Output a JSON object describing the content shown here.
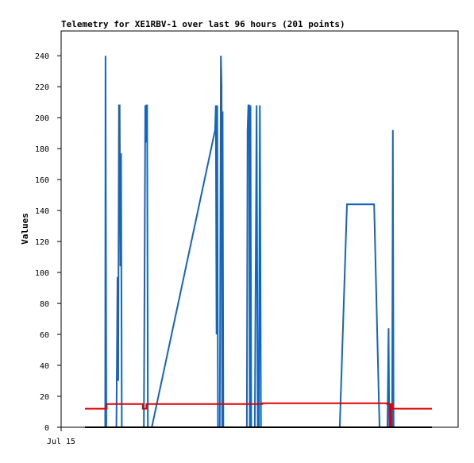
{
  "chart_data": {
    "type": "line",
    "title": "Telemetry for XE1RBV-1 over last 96 hours (201 points)",
    "xlabel": "",
    "ylabel": "Values",
    "x_tick_labels": [
      "Jul 15"
    ],
    "y_ticks": [
      0,
      20,
      40,
      60,
      80,
      100,
      120,
      140,
      160,
      180,
      200,
      220,
      240
    ],
    "xlim": [
      0,
      96
    ],
    "ylim": [
      0,
      256
    ],
    "grid": false,
    "legend": "none",
    "colors": {
      "blue": "#1565c0",
      "red": "#e00000",
      "black": "#000000"
    },
    "series": [
      {
        "color": "#1565c0",
        "points": [
          [
            5.6,
            0
          ],
          [
            5.7,
            240
          ],
          [
            5.8,
            120
          ],
          [
            5.9,
            0
          ],
          [
            8.7,
            0
          ],
          [
            9.0,
            97
          ],
          [
            9.2,
            30
          ],
          [
            9.4,
            208
          ],
          [
            9.6,
            208
          ],
          [
            9.8,
            104
          ],
          [
            10.0,
            177
          ],
          [
            10.2,
            0
          ],
          [
            16.3,
            0
          ],
          [
            16.5,
            104
          ],
          [
            16.7,
            208
          ],
          [
            16.85,
            184
          ],
          [
            17.0,
            208
          ],
          [
            17.2,
            208
          ],
          [
            17.4,
            0
          ],
          [
            18.5,
            0
          ],
          [
            36.0,
            192
          ],
          [
            36.2,
            208
          ],
          [
            36.4,
            60
          ],
          [
            36.6,
            208
          ],
          [
            36.8,
            0
          ],
          [
            37.3,
            0
          ],
          [
            37.6,
            240
          ],
          [
            37.8,
            220
          ],
          [
            37.95,
            0
          ],
          [
            38.1,
            204
          ],
          [
            38.3,
            0
          ],
          [
            44.8,
            0
          ],
          [
            45.0,
            192
          ],
          [
            45.2,
            208
          ],
          [
            45.4,
            208
          ],
          [
            45.6,
            0
          ],
          [
            45.8,
            208
          ],
          [
            46.0,
            0
          ],
          [
            47.0,
            0
          ],
          [
            47.5,
            208
          ],
          [
            47.8,
            0
          ],
          [
            48.1,
            0
          ],
          [
            48.4,
            208
          ],
          [
            48.7,
            0
          ],
          [
            81.6,
            0
          ],
          [
            83.7,
            0
          ],
          [
            84.0,
            64
          ],
          [
            84.2,
            0
          ],
          [
            85.0,
            0
          ],
          [
            85.2,
            192
          ],
          [
            85.4,
            0
          ]
        ]
      },
      {
        "color": "#1565c0",
        "points": [
          [
            70.5,
            0
          ],
          [
            72.5,
            144
          ],
          [
            80.0,
            144
          ],
          [
            81.5,
            0
          ]
        ]
      },
      {
        "color": "#e00000",
        "points": [
          [
            0,
            12
          ],
          [
            6.0,
            12
          ],
          [
            6.0,
            15
          ],
          [
            16.0,
            15
          ],
          [
            16.0,
            12
          ],
          [
            17.0,
            12
          ],
          [
            17.0,
            15
          ],
          [
            49.0,
            15
          ],
          [
            49.0,
            15.5
          ],
          [
            83.6,
            15.5
          ],
          [
            83.6,
            15
          ],
          [
            84.4,
            15
          ],
          [
            84.4,
            0.5
          ],
          [
            84.7,
            0.5
          ],
          [
            84.7,
            15
          ],
          [
            85.0,
            15
          ],
          [
            85.0,
            12
          ],
          [
            96.0,
            12
          ]
        ]
      },
      {
        "color": "#000000",
        "points": [
          [
            0,
            0
          ],
          [
            96.0,
            0
          ]
        ]
      }
    ]
  }
}
